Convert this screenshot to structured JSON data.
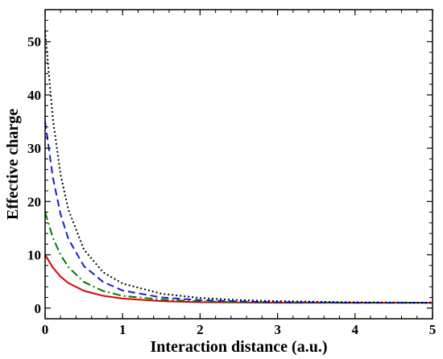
{
  "chart_data": {
    "type": "line",
    "title": "",
    "xlabel": "Interaction distance (a.u.)",
    "ylabel": "Effective charge",
    "xlim": [
      0,
      5
    ],
    "ylim": [
      -2,
      56
    ],
    "xticks": [
      "0",
      "1",
      "2",
      "3",
      "4",
      "5"
    ],
    "yticks": [
      "0",
      "10",
      "20",
      "30",
      "40",
      "50"
    ],
    "grid": false,
    "legend": "none",
    "series": [
      {
        "color": "#e00000",
        "style": "solid",
        "x": [
          0,
          0.1,
          0.2,
          0.3,
          0.5,
          0.75,
          1.0,
          1.5,
          2.0,
          2.5,
          3.0,
          4.0,
          5.0
        ],
        "values": [
          10,
          7.6,
          5.9,
          4.7,
          3.25,
          2.3,
          1.8,
          1.3,
          1.1,
          1.05,
          1.0,
          1.0,
          1.0
        ]
      },
      {
        "color": "#007a00",
        "style": "dashdot",
        "x": [
          0,
          0.1,
          0.2,
          0.3,
          0.5,
          0.75,
          1.0,
          1.5,
          2.0,
          2.5,
          3.0,
          4.0,
          5.0
        ],
        "values": [
          18,
          13.2,
          10.0,
          7.7,
          4.9,
          3.2,
          2.3,
          1.6,
          1.25,
          1.1,
          1.05,
          1.0,
          1.0
        ]
      },
      {
        "color": "#1a1ad6",
        "style": "dashed",
        "x": [
          0,
          0.1,
          0.2,
          0.3,
          0.5,
          0.75,
          1.0,
          1.5,
          2.0,
          2.5,
          3.0,
          4.0,
          5.0
        ],
        "values": [
          35,
          24.5,
          17.6,
          13.0,
          7.9,
          4.9,
          3.3,
          2.0,
          1.5,
          1.25,
          1.1,
          1.0,
          1.0
        ]
      },
      {
        "color": "#000000",
        "style": "dotted",
        "x": [
          0,
          0.1,
          0.2,
          0.3,
          0.5,
          0.75,
          1.0,
          1.5,
          2.0,
          2.5,
          3.0,
          4.0,
          5.0
        ],
        "values": [
          52,
          35.5,
          25.0,
          18.5,
          11.0,
          6.7,
          4.6,
          2.7,
          1.9,
          1.5,
          1.3,
          1.1,
          1.0
        ]
      }
    ]
  }
}
